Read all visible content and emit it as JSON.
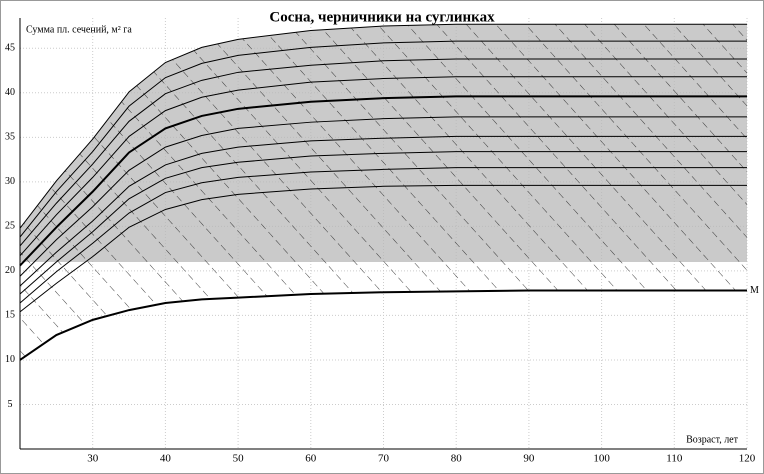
{
  "chart_data": {
    "type": "line",
    "title": "Сосна, черничники на суглинках",
    "y_label": "Сумма пл. сечений, м² га",
    "x_label": "Возраст, лет",
    "x": [
      20,
      25,
      30,
      35,
      40,
      45,
      50,
      60,
      70,
      80,
      90,
      100,
      110,
      120
    ],
    "series": [
      {
        "color": "#000",
        "values": [
          24.8,
          30.1,
          34.8,
          40.1,
          43.4,
          45.1,
          46.0,
          47.0,
          47.5,
          47.7,
          47.7,
          47.7,
          47.7,
          47.7
        ]
      },
      {
        "color": "#000",
        "values": [
          23.8,
          28.9,
          33.4,
          38.5,
          41.7,
          43.3,
          44.2,
          45.1,
          45.6,
          45.8,
          45.8,
          45.8,
          45.8,
          45.8
        ]
      },
      {
        "color": "#000",
        "values": [
          22.8,
          27.6,
          32.0,
          36.8,
          39.9,
          41.4,
          42.3,
          43.1,
          43.6,
          43.8,
          43.8,
          43.8,
          43.8,
          43.8
        ]
      },
      {
        "color": "#000",
        "values": [
          21.7,
          26.3,
          30.5,
          35.1,
          38.0,
          39.5,
          40.3,
          41.2,
          41.6,
          41.8,
          41.8,
          41.8,
          41.8,
          41.8
        ]
      },
      {
        "color": "#000",
        "width": 2,
        "values": [
          20.6,
          24.9,
          28.9,
          33.3,
          36.0,
          37.4,
          38.2,
          39.0,
          39.4,
          39.6,
          39.6,
          39.6,
          39.6,
          39.6
        ]
      },
      {
        "color": "#000",
        "values": [
          19.4,
          23.5,
          27.2,
          31.3,
          33.9,
          35.2,
          36.0,
          36.7,
          37.1,
          37.3,
          37.3,
          37.3,
          37.3,
          37.3
        ]
      },
      {
        "color": "#000",
        "values": [
          18.3,
          22.1,
          25.6,
          29.5,
          31.9,
          33.2,
          33.9,
          34.6,
          34.9,
          35.1,
          35.1,
          35.1,
          35.1,
          35.1
        ]
      },
      {
        "color": "#000",
        "values": [
          17.4,
          21.0,
          24.4,
          28.1,
          30.4,
          31.6,
          32.2,
          32.9,
          33.2,
          33.4,
          33.4,
          33.4,
          33.4,
          33.4
        ]
      },
      {
        "color": "#000",
        "values": [
          16.4,
          19.9,
          23.1,
          26.5,
          28.8,
          29.9,
          30.5,
          31.1,
          31.4,
          31.6,
          31.6,
          31.6,
          31.6,
          31.6
        ]
      },
      {
        "color": "#000",
        "values": [
          15.4,
          18.6,
          21.6,
          24.9,
          26.9,
          28.0,
          28.6,
          29.2,
          29.5,
          29.6,
          29.6,
          29.6,
          29.6,
          29.6
        ]
      },
      {
        "name": "M",
        "color": "#000",
        "width": 2,
        "values": [
          10,
          12.8,
          14.5,
          15.6,
          16.4,
          16.8,
          17.0,
          17.4,
          17.6,
          17.7,
          17.8,
          17.8,
          17.8,
          17.8
        ]
      }
    ],
    "shade_bottom": 21,
    "xlim": [
      20,
      120
    ],
    "ylim": [
      0,
      48.4
    ],
    "xticks": [
      30,
      40,
      50,
      60,
      70,
      80,
      90,
      100,
      110,
      120
    ],
    "yticks": [
      5,
      10,
      15,
      20,
      25,
      30,
      35,
      40,
      45
    ],
    "grid": true
  }
}
